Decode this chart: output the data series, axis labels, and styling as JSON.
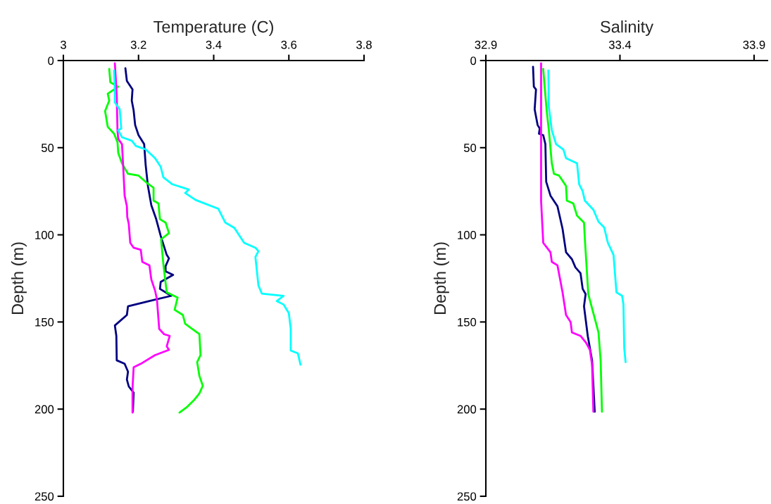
{
  "chart_data": [
    {
      "type": "line",
      "xlabel": "Temperature (C)",
      "ylabel": "Depth (m)",
      "xlim": [
        3,
        3.8
      ],
      "xticks": [
        3,
        3.2,
        3.4,
        3.6,
        3.8
      ],
      "ylim": [
        250,
        0
      ],
      "yticks": [
        0,
        50,
        100,
        150,
        200,
        250
      ],
      "grid": false,
      "marker": "none",
      "line_style": "solid",
      "series": [
        {
          "color": "#000080",
          "x": [
            3.165,
            3.169,
            3.184,
            3.182,
            3.187,
            3.191,
            3.2,
            3.215,
            3.219,
            3.225,
            3.234,
            3.247,
            3.259,
            3.275,
            3.281,
            3.272,
            3.272,
            3.292,
            3.259,
            3.257,
            3.287,
            3.229,
            3.172,
            3.169,
            3.137,
            3.141,
            3.142,
            3.163,
            3.172,
            3.169,
            3.174,
            3.187,
            3.185
          ],
          "values": [
            4.4,
            11.7,
            16.6,
            23,
            28.7,
            37,
            42.8,
            48,
            60,
            72,
            83,
            91,
            100.6,
            111.5,
            113.5,
            118,
            121,
            123,
            127,
            131,
            135,
            138,
            141,
            146,
            152,
            158,
            172,
            174,
            178.5,
            183,
            187,
            190.6,
            201.5
          ]
        },
        {
          "color": "#00ff00",
          "x": [
            3.122,
            3.125,
            3.146,
            3.118,
            3.122,
            3.111,
            3.118,
            3.135,
            3.144,
            3.146,
            3.156,
            3.172,
            3.2,
            3.221,
            3.24,
            3.24,
            3.253,
            3.257,
            3.272,
            3.281,
            3.26,
            3.266,
            3.275,
            3.304,
            3.296,
            3.318,
            3.324,
            3.343,
            3.362,
            3.365,
            3.356,
            3.362,
            3.371,
            3.362,
            3.347,
            3.328,
            3.309
          ],
          "values": [
            4.8,
            12.5,
            15,
            19,
            23,
            29,
            38,
            42,
            46.8,
            53,
            59,
            65,
            66,
            70,
            73,
            80.4,
            82,
            91,
            93,
            99,
            102.6,
            116.7,
            133,
            136,
            143,
            146,
            151,
            154,
            157,
            169,
            173,
            181,
            186.6,
            191,
            195,
            199,
            202
          ]
        },
        {
          "color": "#ff00ff",
          "x": [
            3.137,
            3.142,
            3.144,
            3.146,
            3.156,
            3.159,
            3.163,
            3.169,
            3.17,
            3.174,
            3.178,
            3.187,
            3.206,
            3.21,
            3.229,
            3.234,
            3.244,
            3.249,
            3.255,
            3.268,
            3.283,
            3.275,
            3.281,
            3.244,
            3.206,
            3.187,
            3.184,
            3.184
          ],
          "values": [
            1.6,
            20,
            40,
            45,
            48,
            60,
            77.5,
            83.6,
            89.7,
            93.7,
            104.6,
            107.4,
            108.6,
            115.5,
            117.5,
            125.6,
            132,
            137,
            154,
            157,
            158,
            164,
            166,
            169,
            174,
            176,
            188,
            202
          ]
        },
        {
          "color": "#00ffff",
          "x": [
            3.135,
            3.137,
            3.137,
            3.15,
            3.154,
            3.146,
            3.156,
            3.182,
            3.193,
            3.219,
            3.244,
            3.259,
            3.266,
            3.29,
            3.334,
            3.324,
            3.352,
            3.412,
            3.431,
            3.455,
            3.481,
            3.511,
            3.519,
            3.511,
            3.519,
            3.528,
            3.586,
            3.568,
            3.586,
            3.6,
            3.605,
            3.605,
            3.624,
            3.631
          ],
          "values": [
            5.7,
            17,
            24,
            28,
            39,
            40,
            44,
            46,
            49,
            51,
            56,
            61,
            67,
            71,
            74,
            76,
            80,
            85,
            93,
            96,
            104.6,
            107.4,
            109.4,
            112.7,
            129,
            133.7,
            135,
            138,
            140,
            145,
            154,
            166.4,
            168,
            174.5
          ]
        }
      ]
    },
    {
      "type": "line",
      "xlabel": "Salinity",
      "ylabel": "Depth (m)",
      "xlim": [
        32.9,
        33.95
      ],
      "xticks": [
        32.9,
        33.4,
        33.9
      ],
      "ylim": [
        250,
        0
      ],
      "yticks": [
        0,
        50,
        100,
        150,
        200,
        250
      ],
      "grid": false,
      "marker": "none",
      "line_style": "solid",
      "series": [
        {
          "color": "#000080",
          "x": [
            33.076,
            33.079,
            33.087,
            33.082,
            33.093,
            33.101,
            33.098,
            33.114,
            33.122,
            33.125,
            33.141,
            33.167,
            33.186,
            33.199,
            33.221,
            33.234,
            33.253,
            33.261,
            33.272,
            33.266,
            33.28,
            33.296,
            33.306
          ],
          "values": [
            3.6,
            15,
            16.6,
            28,
            37,
            39,
            42,
            42.8,
            48,
            69.5,
            77.5,
            83.6,
            96.5,
            110,
            114,
            118.7,
            122,
            131,
            134,
            141,
            158,
            172,
            201.5
          ]
        },
        {
          "color": "#00ff00",
          "x": [
            33.114,
            33.119,
            33.127,
            33.135,
            33.146,
            33.154,
            33.173,
            33.199,
            33.202,
            33.226,
            33.24,
            33.266,
            33.269,
            33.282,
            33.301,
            33.32,
            33.328,
            33.333
          ],
          "values": [
            4.8,
            14.5,
            29,
            40,
            59,
            65,
            66,
            72,
            80.4,
            82,
            89,
            93,
            102,
            134,
            145,
            156,
            172,
            201.5
          ]
        },
        {
          "color": "#ff00ff",
          "x": [
            33.106,
            33.106,
            33.106,
            33.114,
            33.141,
            33.146,
            33.167,
            33.186,
            33.199,
            33.216,
            33.221,
            33.253,
            33.274,
            33.288,
            33.296,
            33.301
          ],
          "values": [
            1.6,
            40,
            80.4,
            104.6,
            110,
            115.5,
            117.5,
            133,
            146,
            150,
            156,
            158,
            162,
            166,
            174.5,
            201.5
          ]
        },
        {
          "color": "#00ffff",
          "x": [
            33.133,
            33.135,
            33.146,
            33.162,
            33.189,
            33.199,
            33.24,
            33.248,
            33.261,
            33.269,
            33.301,
            33.32,
            33.341,
            33.355,
            33.376,
            33.387,
            33.408,
            33.413,
            33.416,
            33.421
          ],
          "values": [
            5.7,
            26.7,
            40,
            48,
            51,
            56,
            59,
            71,
            75,
            80.4,
            85.6,
            92.5,
            95.7,
            104.6,
            111.5,
            133,
            135,
            140,
            165,
            173
          ]
        }
      ]
    }
  ]
}
